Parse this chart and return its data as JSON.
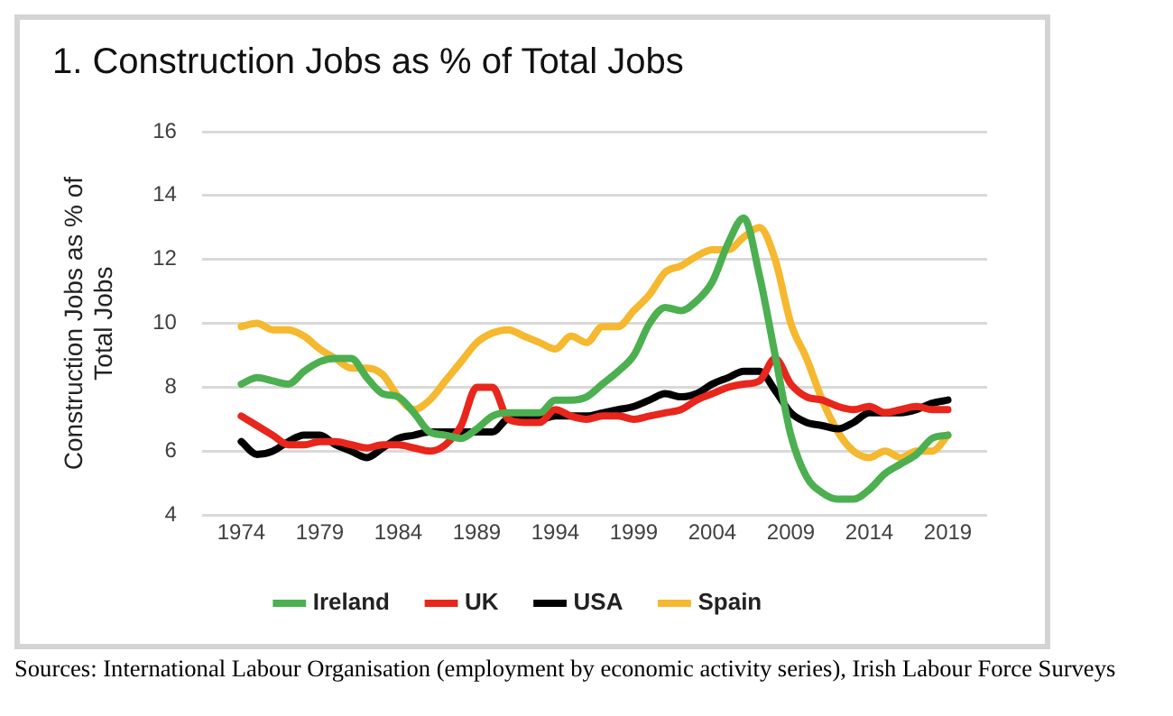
{
  "chart_data": {
    "type": "line",
    "title": "1. Construction Jobs as % of Total Jobs",
    "ylabel": "Construction Jobs as % of Total Jobs",
    "x": [
      1974,
      1975,
      1976,
      1977,
      1978,
      1979,
      1980,
      1981,
      1982,
      1983,
      1984,
      1985,
      1986,
      1987,
      1988,
      1989,
      1990,
      1991,
      1992,
      1993,
      1994,
      1995,
      1996,
      1997,
      1998,
      1999,
      2000,
      2001,
      2002,
      2003,
      2004,
      2005,
      2006,
      2007,
      2008,
      2009,
      2010,
      2011,
      2012,
      2013,
      2014,
      2015,
      2016,
      2017,
      2018,
      2019
    ],
    "series": [
      {
        "name": "Ireland",
        "color": "#4caf50",
        "values": [
          8.1,
          8.3,
          8.2,
          8.1,
          8.5,
          8.8,
          8.9,
          8.9,
          8.3,
          7.8,
          7.7,
          7.2,
          6.6,
          6.5,
          6.4,
          6.7,
          7.1,
          7.2,
          7.2,
          7.2,
          7.6,
          7.6,
          7.7,
          8.1,
          8.5,
          9.0,
          10.0,
          10.5,
          10.4,
          10.7,
          11.3,
          12.5,
          13.3,
          11.5,
          9.0,
          6.5,
          5.2,
          4.7,
          4.5,
          4.5,
          4.8,
          5.3,
          5.6,
          5.9,
          6.4,
          6.5
        ]
      },
      {
        "name": "UK",
        "color": "#e8261c",
        "values": [
          7.1,
          6.8,
          6.5,
          6.2,
          6.2,
          6.3,
          6.3,
          6.2,
          6.1,
          6.2,
          6.2,
          6.1,
          6.0,
          6.2,
          6.8,
          8.0,
          8.0,
          7.0,
          6.9,
          6.9,
          7.3,
          7.1,
          7.0,
          7.1,
          7.1,
          7.0,
          7.1,
          7.2,
          7.3,
          7.6,
          7.8,
          8.0,
          8.1,
          8.2,
          8.9,
          8.1,
          7.7,
          7.6,
          7.4,
          7.3,
          7.4,
          7.2,
          7.3,
          7.4,
          7.3,
          7.3
        ]
      },
      {
        "name": "USA",
        "color": "#000000",
        "values": [
          6.3,
          5.9,
          6.0,
          6.3,
          6.5,
          6.5,
          6.2,
          6.0,
          5.8,
          6.1,
          6.4,
          6.5,
          6.6,
          6.6,
          6.6,
          6.6,
          6.6,
          7.0,
          7.0,
          7.0,
          7.1,
          7.1,
          7.1,
          7.2,
          7.3,
          7.4,
          7.6,
          7.8,
          7.7,
          7.8,
          8.1,
          8.3,
          8.5,
          8.5,
          7.9,
          7.2,
          6.9,
          6.8,
          6.7,
          6.9,
          7.2,
          7.2,
          7.2,
          7.3,
          7.5,
          7.6
        ]
      },
      {
        "name": "Spain",
        "color": "#f5b82e",
        "values": [
          9.9,
          10.0,
          9.8,
          9.8,
          9.6,
          9.2,
          8.9,
          8.6,
          8.6,
          8.4,
          7.7,
          7.3,
          7.6,
          8.2,
          8.8,
          9.4,
          9.7,
          9.8,
          9.6,
          9.4,
          9.2,
          9.6,
          9.4,
          9.9,
          9.9,
          10.4,
          10.9,
          11.6,
          11.8,
          12.1,
          12.3,
          12.3,
          12.7,
          13.0,
          12.0,
          10.0,
          8.9,
          7.6,
          6.6,
          6.0,
          5.8,
          6.0,
          5.8,
          6.0,
          6.0,
          6.5
        ]
      }
    ],
    "xlim": [
      1971.5,
      2021.5
    ],
    "xticks": [
      1974,
      1979,
      1984,
      1989,
      1994,
      1999,
      2004,
      2009,
      2014,
      2019
    ],
    "ylim": [
      4,
      16
    ],
    "yticks": [
      4,
      6,
      8,
      10,
      12,
      14,
      16
    ],
    "grid": "y",
    "legend": "bottom",
    "marker": "none",
    "line_style": "solid",
    "annotations": [
      "Sources: International Labour Organisation (employment by economic activity series), Irish Labour Force Surveys"
    ]
  }
}
